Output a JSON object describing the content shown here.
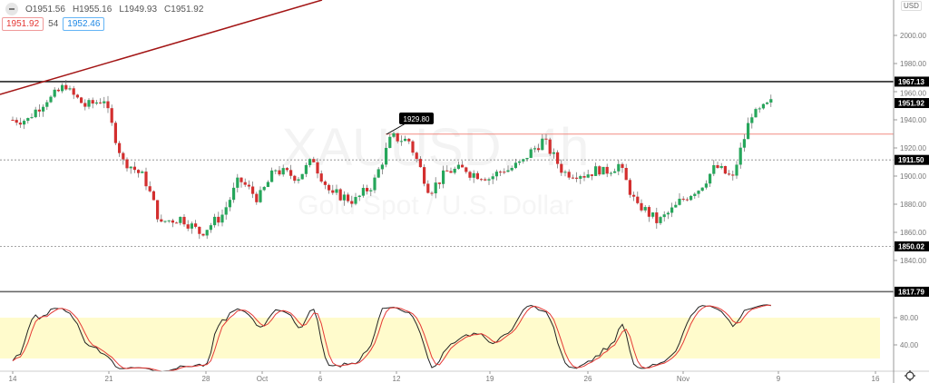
{
  "symbol_watermark": "XAUUSD, 4h",
  "symbol_description": "Gold Spot / U.S. Dollar",
  "ohlc": {
    "open": "O1951.56",
    "high": "H1955.16",
    "low": "L1949.93",
    "close": "C1951.92"
  },
  "quote": {
    "sell": "1951.92",
    "spread": "54",
    "buy": "1952.46"
  },
  "currency_label": "USD",
  "price_axis": {
    "ticks": [
      "2000.00",
      "1980.00",
      "1960.00",
      "1940.00",
      "1920.00",
      "1900.00",
      "1880.00",
      "1860.00",
      "1840.00"
    ],
    "values": [
      2000,
      1980,
      1960,
      1940,
      1920,
      1900,
      1880,
      1860,
      1840
    ]
  },
  "price_labels": [
    {
      "text": "1967.13",
      "value": 1967.13,
      "line": "solid",
      "color": "#000000"
    },
    {
      "text": "1951.92",
      "value": 1951.92,
      "line": "none",
      "color": "#000000"
    },
    {
      "text": "1911.50",
      "value": 1911.5,
      "line": "dotted",
      "color": "#000000"
    },
    {
      "text": "1850.02",
      "value": 1850.02,
      "line": "dotted",
      "color": "#000000"
    },
    {
      "text": "1817.79",
      "value": 1817.79,
      "line": "solid",
      "color": "#000000"
    }
  ],
  "resistance": {
    "text": "1929.80",
    "value": 1929.8,
    "color": "#f28b82"
  },
  "trendline_color": "#a31515",
  "stoch_axis": {
    "ticks": [
      "80.00",
      "40.00"
    ],
    "values": [
      80,
      40
    ],
    "band": [
      20,
      80
    ],
    "band_color": "#fffbcc"
  },
  "time_axis": [
    "14",
    "21",
    "28",
    "Oct",
    "6",
    "12",
    "19",
    "26",
    "Nov",
    "9",
    "16"
  ],
  "colors": {
    "up": "#26a65b",
    "down": "#d32f2f",
    "k_line": "#222222",
    "d_line": "#e53935"
  },
  "chart_data": {
    "type": "candlestick",
    "timeframe": "4h",
    "waypoints": [
      [
        "Sep 14",
        1940
      ],
      [
        "Sep 15",
        1955
      ],
      [
        "Sep 16",
        1965
      ],
      [
        "Sep 17",
        1950
      ],
      [
        "Sep 18",
        1955
      ],
      [
        "Sep 21",
        1910
      ],
      [
        "Sep 22",
        1900
      ],
      [
        "Sep 23",
        1865
      ],
      [
        "Sep 24",
        1870
      ],
      [
        "Sep 25",
        1860
      ],
      [
        "Sep 28",
        1870
      ],
      [
        "Sep 29",
        1895
      ],
      [
        "Sep 30",
        1885
      ],
      [
        "Oct 1",
        1905
      ],
      [
        "Oct 2",
        1900
      ],
      [
        "Oct 5",
        1912
      ],
      [
        "Oct 6",
        1885
      ],
      [
        "Oct 7",
        1883
      ],
      [
        "Oct 8",
        1893
      ],
      [
        "Oct 9",
        1925
      ],
      [
        "Oct 12",
        1925
      ],
      [
        "Oct 13",
        1892
      ],
      [
        "Oct 14",
        1903
      ],
      [
        "Oct 15",
        1905
      ],
      [
        "Oct 16",
        1900
      ],
      [
        "Oct 19",
        1905
      ],
      [
        "Oct 20",
        1910
      ],
      [
        "Oct 21",
        1925
      ],
      [
        "Oct 22",
        1905
      ],
      [
        "Oct 23",
        1902
      ],
      [
        "Oct 26",
        1905
      ],
      [
        "Oct 27",
        1908
      ],
      [
        "Oct 28",
        1877
      ],
      [
        "Oct 29",
        1868
      ],
      [
        "Oct 30",
        1878
      ],
      [
        "Nov 2",
        1890
      ],
      [
        "Nov 3",
        1905
      ],
      [
        "Nov 4",
        1898
      ],
      [
        "Nov 5",
        1945
      ],
      [
        "Nov 6",
        1951.92
      ]
    ],
    "ylim": [
      1810,
      2010
    ]
  }
}
